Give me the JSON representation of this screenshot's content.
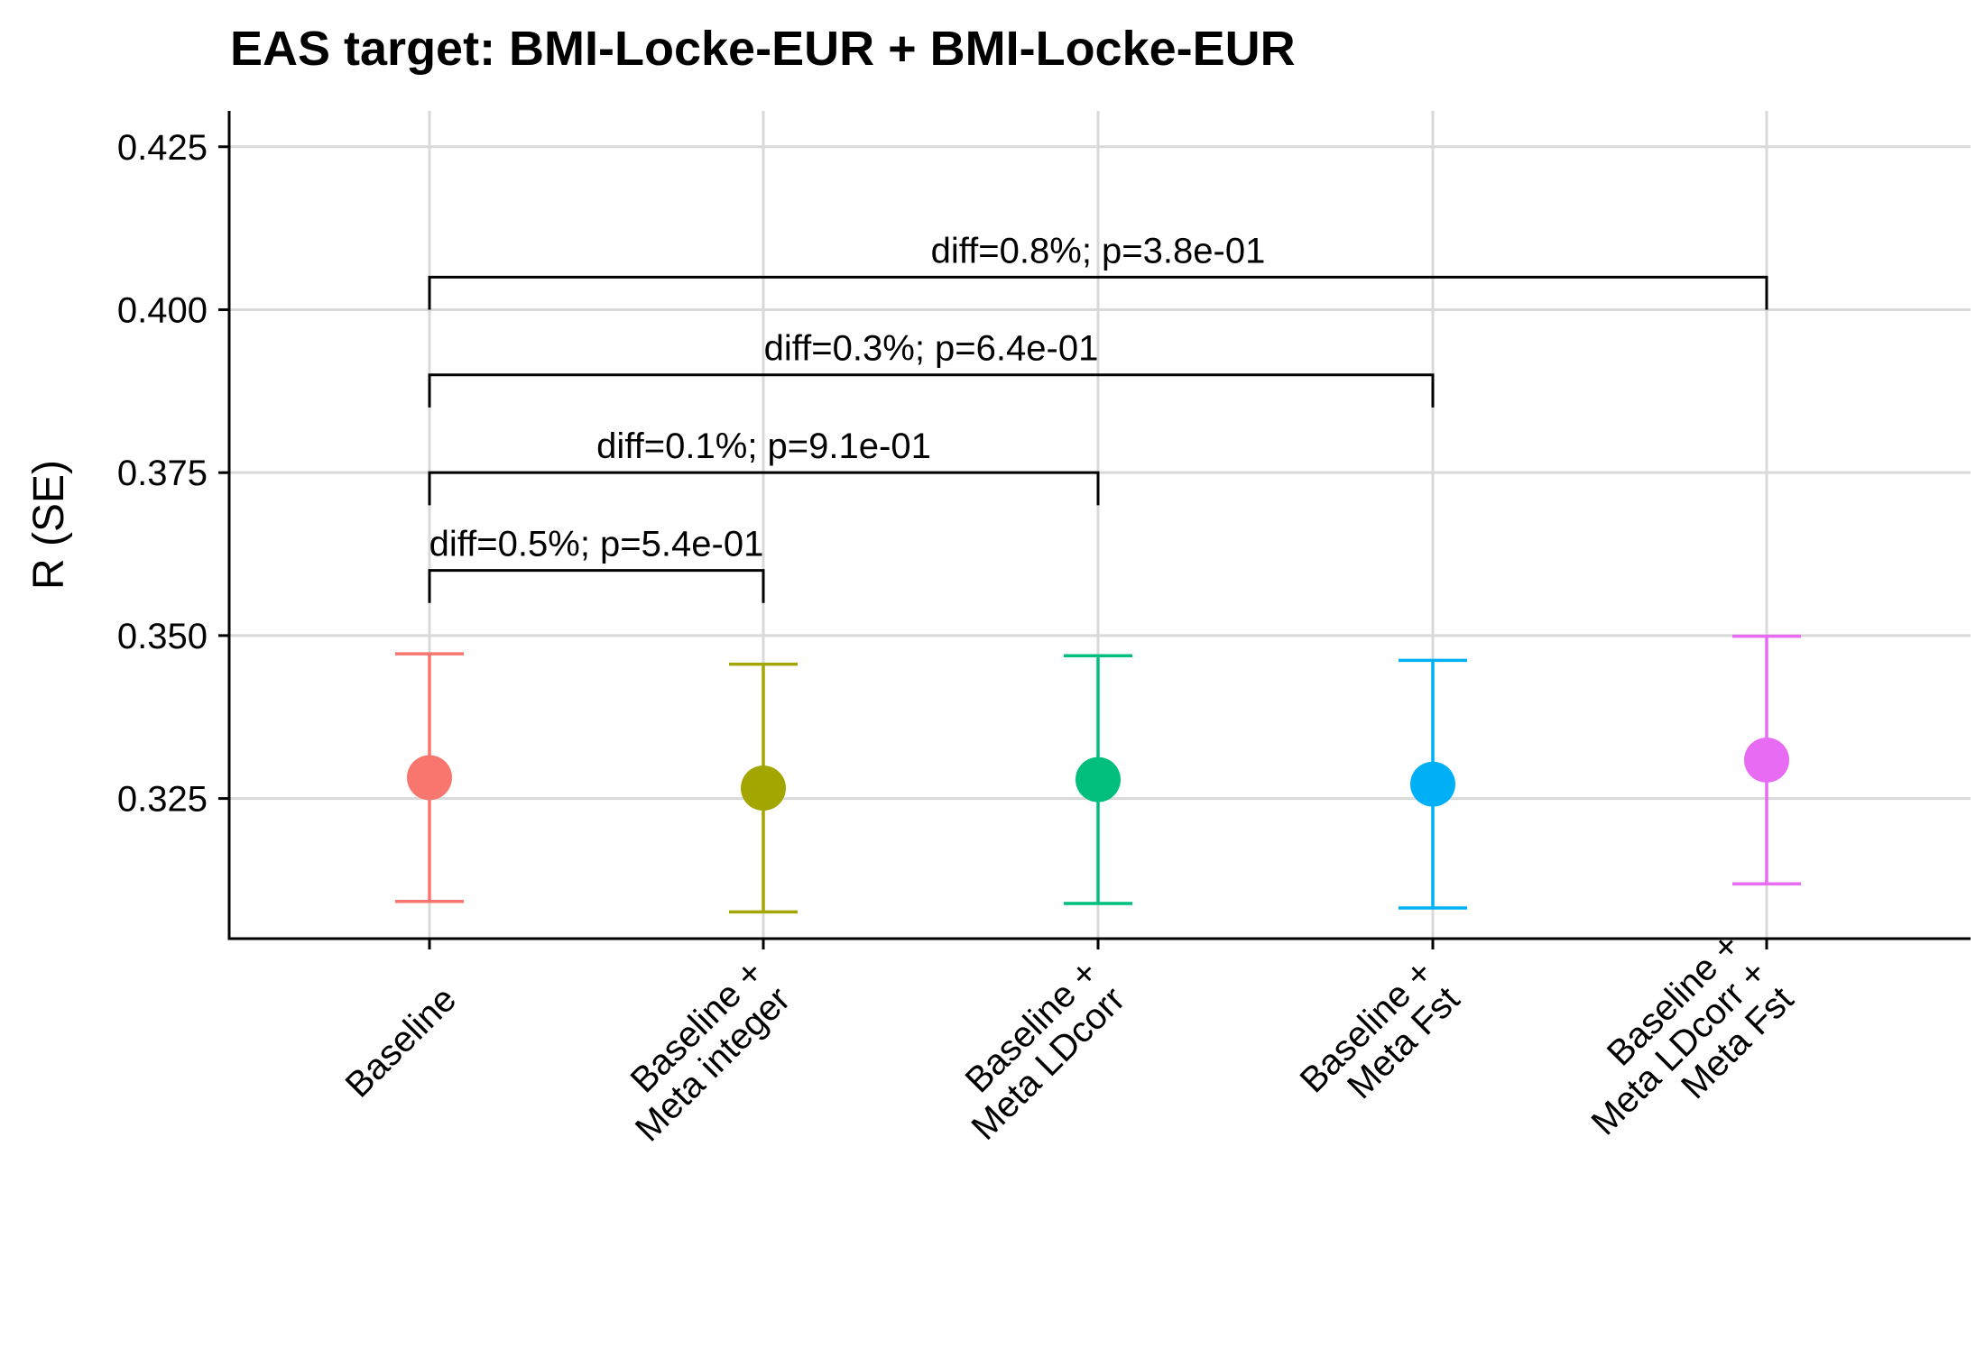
{
  "chart_data": {
    "type": "scatter",
    "title": "EAS target: BMI-Locke-EUR + BMI-Locke-EUR",
    "xlabel": "",
    "ylabel": "R (SE)",
    "ylim": [
      0.3035,
      0.4305
    ],
    "yticks": [
      0.325,
      0.35,
      0.375,
      0.4,
      0.425
    ],
    "ytick_labels": [
      "0.325",
      "0.350",
      "0.375",
      "0.400",
      "0.425"
    ],
    "grid": true,
    "legend": "none",
    "categories": [
      [
        "Baseline"
      ],
      [
        "Baseline +",
        "Meta integer"
      ],
      [
        "Baseline +",
        "Meta LDcorr"
      ],
      [
        "Baseline +",
        "Meta Fst"
      ],
      [
        "Baseline +",
        "Meta LDcorr +",
        "Meta Fst"
      ]
    ],
    "points": [
      {
        "r": 0.3282,
        "lower": 0.3092,
        "upper": 0.3472,
        "color": "#F8766D"
      },
      {
        "r": 0.3266,
        "lower": 0.3076,
        "upper": 0.3456,
        "color": "#A3A500"
      },
      {
        "r": 0.3279,
        "lower": 0.3089,
        "upper": 0.3469,
        "color": "#00BF7D"
      },
      {
        "r": 0.3272,
        "lower": 0.3082,
        "upper": 0.3462,
        "color": "#00B0F6"
      },
      {
        "r": 0.3309,
        "lower": 0.3119,
        "upper": 0.3499,
        "color": "#E76BF3"
      }
    ],
    "comparisons": [
      {
        "from": 0,
        "to": 1,
        "y": 0.36,
        "left_end": 0.355,
        "right_end": 0.355,
        "label": "diff=0.5%; p=5.4e-01"
      },
      {
        "from": 0,
        "to": 2,
        "y": 0.375,
        "left_end": 0.37,
        "right_end": 0.37,
        "label": "diff=0.1%; p=9.1e-01"
      },
      {
        "from": 0,
        "to": 3,
        "y": 0.39,
        "left_end": 0.385,
        "right_end": 0.385,
        "label": "diff=0.3%; p=6.4e-01"
      },
      {
        "from": 0,
        "to": 4,
        "y": 0.405,
        "left_end": 0.4,
        "right_end": 0.4,
        "label": "diff=0.8%; p=3.8e-01"
      }
    ]
  }
}
